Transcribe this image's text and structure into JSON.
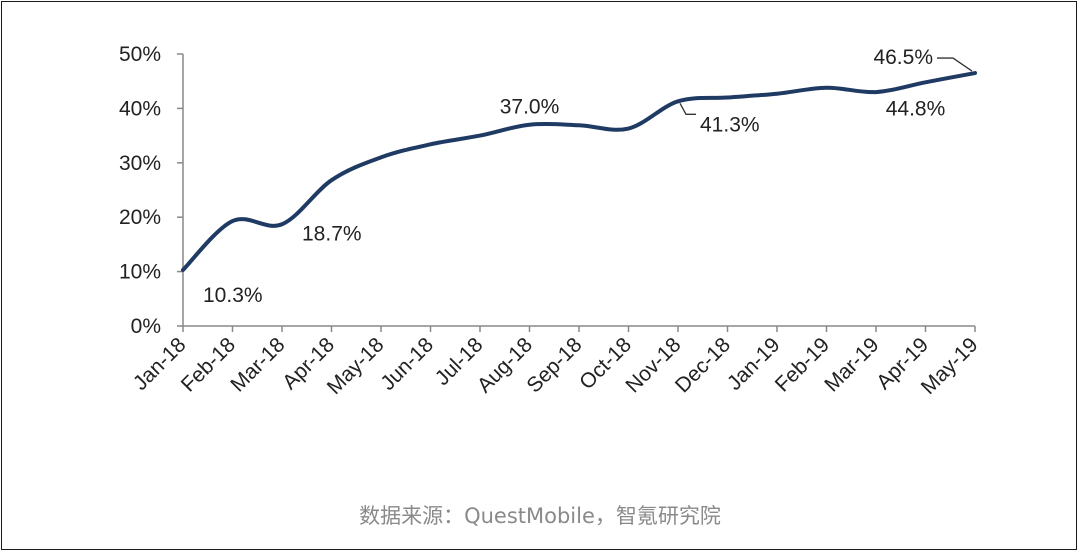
{
  "chart_data": {
    "type": "line",
    "categories": [
      "Jan-18",
      "Feb-18",
      "Mar-18",
      "Apr-18",
      "May-18",
      "Jun-18",
      "Jul-18",
      "Aug-18",
      "Sep-18",
      "Oct-18",
      "Nov-18",
      "Dec-18",
      "Jan-19",
      "Feb-19",
      "Mar-19",
      "Apr-19",
      "May-19"
    ],
    "series": [
      {
        "values": [
          10.3,
          19.3,
          18.7,
          26.8,
          31.0,
          33.4,
          35.0,
          37.0,
          36.9,
          36.3,
          41.3,
          42.0,
          42.7,
          43.8,
          43.0,
          44.8,
          46.5
        ]
      }
    ],
    "yticks": [
      "0%",
      "10%",
      "20%",
      "30%",
      "40%",
      "50%"
    ],
    "ylim": [
      0,
      50
    ],
    "annotations": [
      {
        "index": 0,
        "text": "10.3%"
      },
      {
        "index": 2,
        "text": "18.7%"
      },
      {
        "index": 7,
        "text": "37.0%"
      },
      {
        "index": 10,
        "text": "41.3%"
      },
      {
        "index": 15,
        "text": "44.8%"
      },
      {
        "index": 16,
        "text": "46.5%"
      }
    ],
    "line_color": "#1f3b63"
  },
  "source_text": "数据来源：QuestMobile，智氪研究院"
}
